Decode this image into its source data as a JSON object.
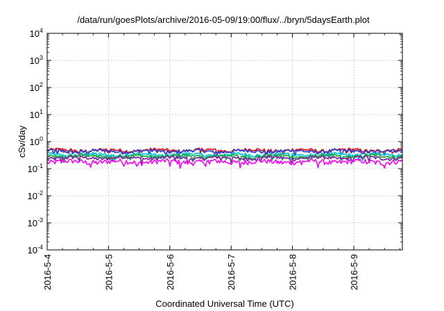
{
  "chart_data": {
    "type": "line",
    "title": "/data/run/goesPlots/archive/2016-05-09/19:00/flux/../bryn/5daysEarth.plot",
    "xlabel": "Coordinated Universal Time (UTC)",
    "ylabel": "cSv/day",
    "y_scale": "log",
    "ylim": [
      0.0001,
      10000
    ],
    "xlim": [
      "2016-05-04",
      "2016-05-09T19:00"
    ],
    "x_ticks": [
      "2016-5-4",
      "2016-5-5",
      "2016-5-6",
      "2016-5-7",
      "2016-5-8",
      "2016-5-9"
    ],
    "y_ticks": [
      {
        "base": "10",
        "exp": "4"
      },
      {
        "base": "10",
        "exp": "3"
      },
      {
        "base": "10",
        "exp": "2"
      },
      {
        "base": "10",
        "exp": "1"
      },
      {
        "base": "10",
        "exp": "0"
      },
      {
        "base": "10",
        "exp": "-1"
      },
      {
        "base": "10",
        "exp": "-2"
      },
      {
        "base": "10",
        "exp": "-3"
      },
      {
        "base": "10",
        "exp": "-4"
      }
    ],
    "grid": true,
    "series": [
      {
        "color": "#e8161e",
        "level": 0.48
      },
      {
        "color": "#2f3fd0",
        "level": 0.44
      },
      {
        "color": "#00c8d8",
        "level": 0.33
      },
      {
        "color": "#22aa44",
        "level": 0.29
      },
      {
        "color": "#7a2f9f",
        "level": 0.25
      },
      {
        "color": "#ff00ff",
        "level": 0.18
      }
    ]
  }
}
